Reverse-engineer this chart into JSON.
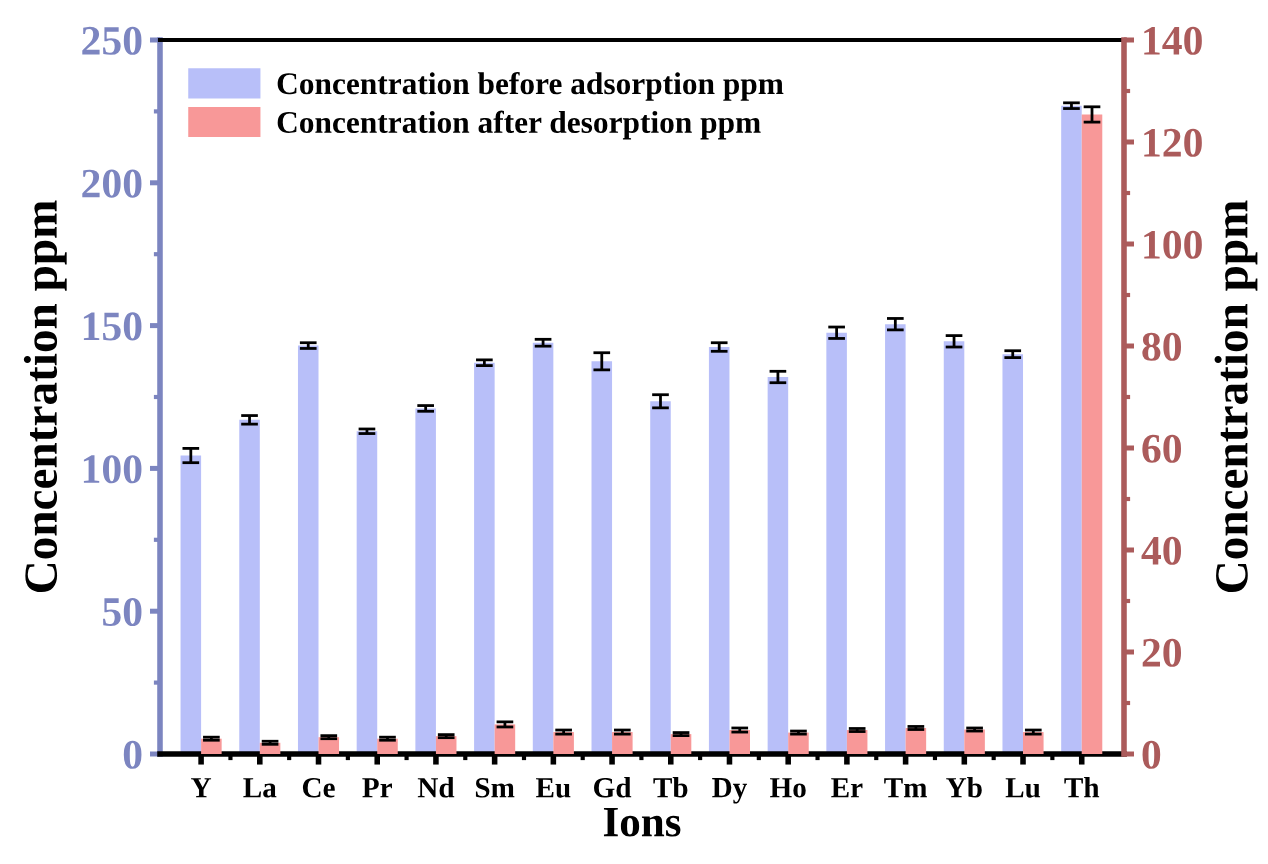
{
  "chart_data": {
    "type": "bar",
    "xlabel": "Ions",
    "ylabel": "Concentration ppm",
    "y2label": "Concentration ppm",
    "categories": [
      "Y",
      "La",
      "Ce",
      "Pr",
      "Nd",
      "Sm",
      "Eu",
      "Gd",
      "Tb",
      "Dy",
      "Ho",
      "Er",
      "Tm",
      "Yb",
      "Lu",
      "Th"
    ],
    "series": [
      {
        "name": "Concentration before adsorption ppm",
        "color": "#b8bff9",
        "values": [
          104.5,
          117,
          143,
          113,
          121,
          137,
          144,
          137.5,
          123.5,
          142.5,
          132,
          147.5,
          150.5,
          144.5,
          140,
          227
        ],
        "errors": [
          2.5,
          1.5,
          1,
          0.8,
          1,
          1,
          1.2,
          3,
          2.3,
          1.5,
          2,
          2,
          2,
          2,
          1.2,
          1
        ]
      },
      {
        "name": "Concentration after desorption ppm",
        "color": "#f89898",
        "axis": "y2",
        "values": [
          3,
          2.2,
          3.3,
          3,
          3.5,
          5.8,
          4.3,
          4.3,
          3.9,
          4.7,
          4.2,
          4.7,
          5.1,
          4.8,
          4.3,
          125.4
        ],
        "errors": [
          0.3,
          0.3,
          0.3,
          0.3,
          0.3,
          0.5,
          0.4,
          0.4,
          0.3,
          0.4,
          0.3,
          0.3,
          0.3,
          0.3,
          0.4,
          1.5
        ]
      }
    ],
    "ylim": [
      0,
      250
    ],
    "yticks": [
      0,
      {
        "value": 25,
        "label": null
      },
      50,
      {
        "value": 75,
        "label": null
      },
      100,
      {
        "value": 125,
        "label": null
      },
      150,
      {
        "value": 175,
        "label": null
      },
      200,
      {
        "value": 225,
        "label": null
      },
      250
    ],
    "y2lim": [
      0,
      140
    ],
    "y2ticks": [
      0,
      {
        "value": 10,
        "label": null
      },
      20,
      {
        "value": 30,
        "label": null
      },
      40,
      {
        "value": 50,
        "label": null
      },
      60,
      {
        "value": 70,
        "label": null
      },
      80,
      {
        "value": 90,
        "label": null
      },
      100,
      {
        "value": 110,
        "label": null
      },
      120,
      {
        "value": 130,
        "label": null
      },
      140
    ],
    "legend": "top left"
  }
}
